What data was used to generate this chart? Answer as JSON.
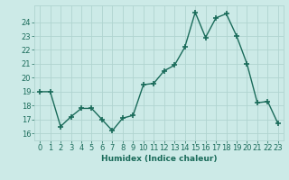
{
  "x": [
    0,
    1,
    2,
    3,
    4,
    5,
    6,
    7,
    8,
    9,
    10,
    11,
    12,
    13,
    14,
    15,
    16,
    17,
    18,
    19,
    20,
    21,
    22,
    23
  ],
  "y": [
    19,
    19,
    16.5,
    17.2,
    17.8,
    17.8,
    17.0,
    16.2,
    17.1,
    17.3,
    19.5,
    19.6,
    20.5,
    20.9,
    22.2,
    24.7,
    22.9,
    24.3,
    24.6,
    23.0,
    21.0,
    18.2,
    18.3,
    16.7
  ],
  "line_color": "#1a6b5a",
  "marker": "+",
  "marker_size": 4,
  "marker_lw": 1.2,
  "bg_color": "#cceae7",
  "grid_color": "#b0d4d0",
  "xlabel": "Humidex (Indice chaleur)",
  "xlim": [
    -0.5,
    23.5
  ],
  "ylim": [
    15.5,
    25.2
  ],
  "yticks": [
    16,
    17,
    18,
    19,
    20,
    21,
    22,
    23,
    24
  ],
  "xtick_labels": [
    "0",
    "1",
    "2",
    "3",
    "4",
    "5",
    "6",
    "7",
    "8",
    "9",
    "10",
    "11",
    "12",
    "13",
    "14",
    "15",
    "16",
    "17",
    "18",
    "19",
    "20",
    "21",
    "22",
    "23"
  ],
  "tick_color": "#1a6b5a",
  "label_fontsize": 6.5,
  "tick_fontsize": 6,
  "line_width": 1.0
}
